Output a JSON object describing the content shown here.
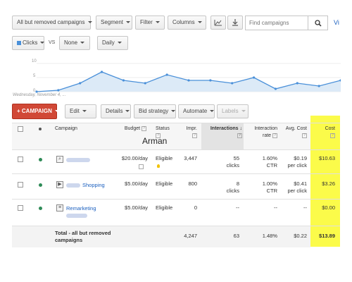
{
  "toolbar": {
    "campaign_filter": "All but removed campaigns",
    "segment": "Segment",
    "filter": "Filter",
    "columns": "Columns",
    "search_placeholder": "Find campaigns",
    "view_link": "Vi"
  },
  "chart_controls": {
    "metric1": "Clicks",
    "vs": "VS",
    "metric2": "None",
    "period": "Daily"
  },
  "chart_data": {
    "type": "area",
    "y_ticks": [
      "10",
      "5",
      "0"
    ],
    "ylim": [
      0,
      10
    ],
    "x_start_label": "Wednesday, November 4, ...",
    "values": [
      0,
      0.5,
      3,
      7,
      4,
      3,
      6,
      4,
      4,
      3,
      5,
      1,
      3,
      2,
      4
    ],
    "color": "#4a90d9"
  },
  "actions": {
    "campaign": "CAMPAIGN",
    "edit": "Edit",
    "details": "Details",
    "bid_strategy": "Bid strategy",
    "automate": "Automate",
    "labels": "Labels"
  },
  "table": {
    "headers": {
      "campaign": "Campaign",
      "budget": "Budget",
      "status": "Status",
      "impr": "Impr.",
      "interactions": "Interactions",
      "interaction_rate": "Interaction rate",
      "avg_cost": "Avg. Cost",
      "cost": "Cost"
    },
    "rows": [
      {
        "name": "",
        "budget": "$20.00/day",
        "status": "Eligible",
        "impr": "3,447",
        "interactions": "55",
        "interactions_unit": "clicks",
        "rate": "1.60%",
        "rate_unit": "CTR",
        "avg_cost": "$0.19",
        "avg_unit": "per click",
        "cost": "$10.63"
      },
      {
        "name": "Shopping",
        "budget": "$5.00/day",
        "status": "Eligible",
        "impr": "800",
        "interactions": "8",
        "interactions_unit": "clicks",
        "rate": "1.00%",
        "rate_unit": "CTR",
        "avg_cost": "$0.41",
        "avg_unit": "per click",
        "cost": "$3.26"
      },
      {
        "name": "Remarketing",
        "budget": "$5.00/day",
        "status": "Eligible",
        "impr": "0",
        "interactions": "--",
        "interactions_unit": "",
        "rate": "--",
        "rate_unit": "",
        "avg_cost": "--",
        "avg_unit": "",
        "cost": "$0.00"
      }
    ],
    "total": {
      "label": "Total - all but removed campaigns",
      "impr": "4,247",
      "interactions": "63",
      "rate": "1.48%",
      "avg_cost": "$0.22",
      "cost": "$13.89"
    },
    "highlight_color": "#fbfb4a"
  },
  "watermark": "Arman"
}
